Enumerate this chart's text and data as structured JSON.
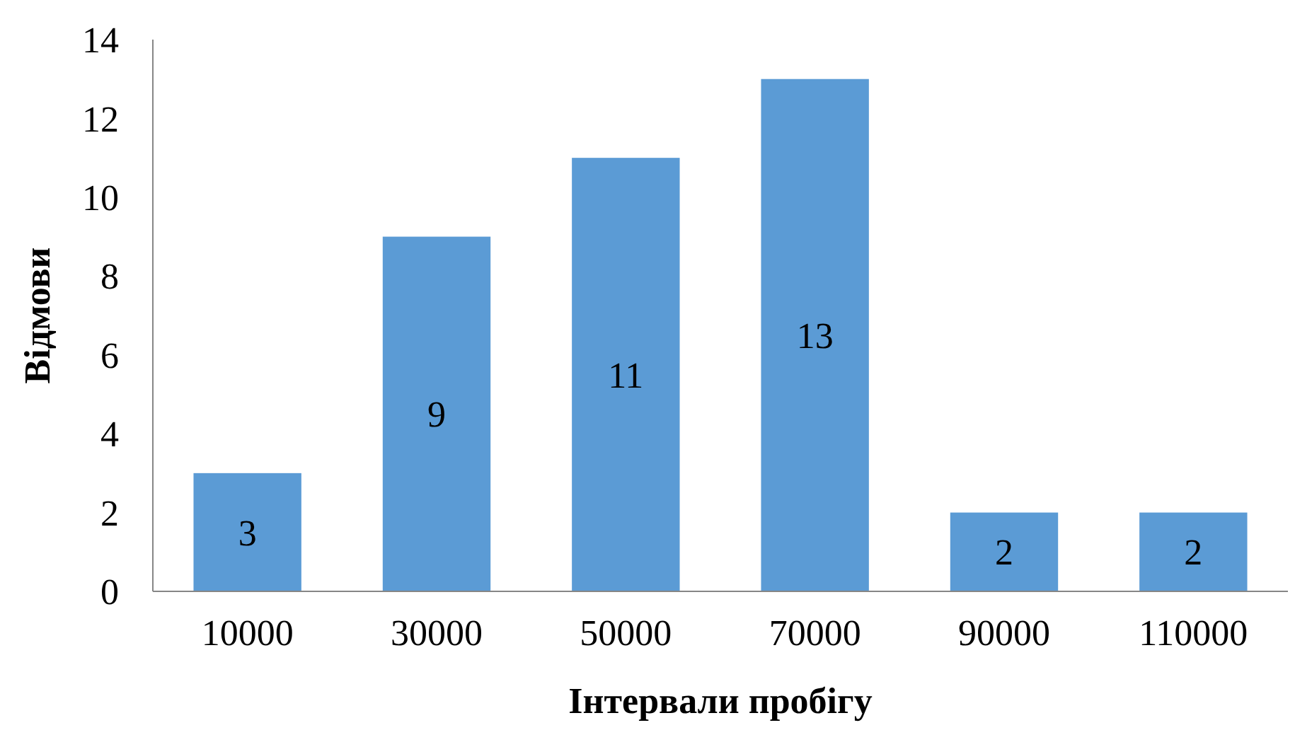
{
  "chart_data": {
    "type": "bar",
    "xlabel": "Інтервали пробігу",
    "ylabel": "Відмови",
    "categories": [
      "10000",
      "30000",
      "50000",
      "70000",
      "90000",
      "110000"
    ],
    "values": [
      3,
      9,
      11,
      13,
      2,
      2
    ],
    "color": "#5b9bd5",
    "data_labels": true,
    "ylim": [
      0,
      14
    ],
    "yticks": [
      0,
      2,
      4,
      6,
      8,
      10,
      12,
      14
    ],
    "grid": false
  }
}
